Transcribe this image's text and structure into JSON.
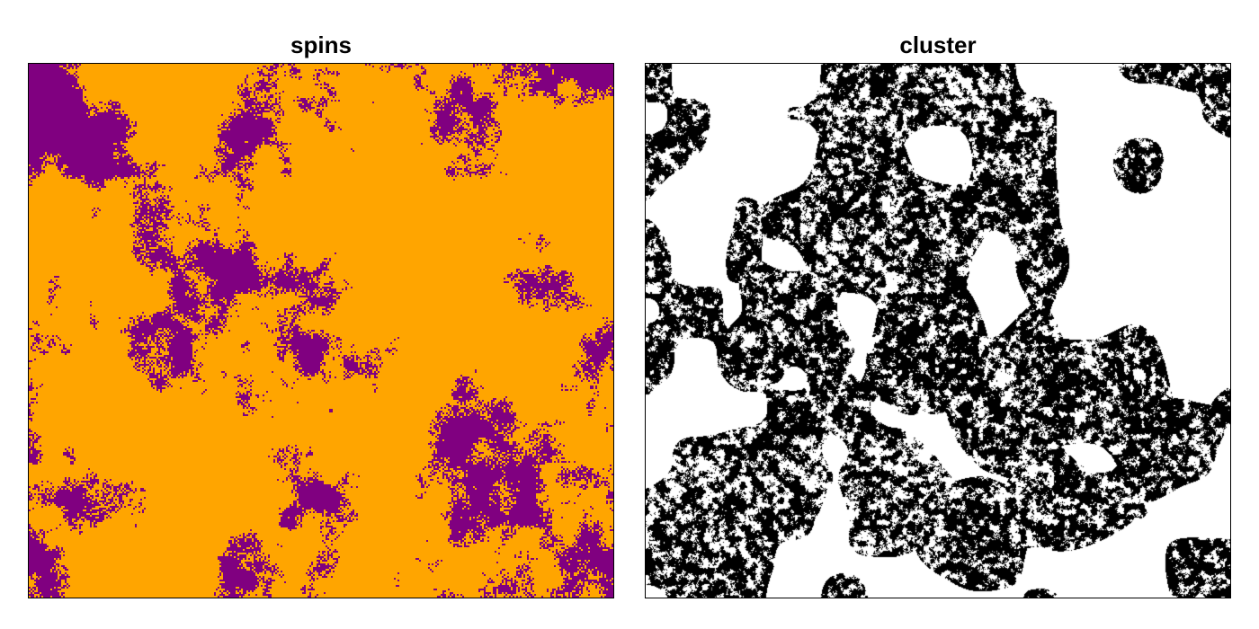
{
  "panels": [
    {
      "title": "spins",
      "kind": "spin-lattice",
      "colors": {
        "spin_up": "#FFA500",
        "spin_down": "#800080"
      }
    },
    {
      "title": "cluster",
      "kind": "cluster-map",
      "colors": {
        "in_cluster": "#000000",
        "outside": "#FFFFFF"
      }
    }
  ]
}
